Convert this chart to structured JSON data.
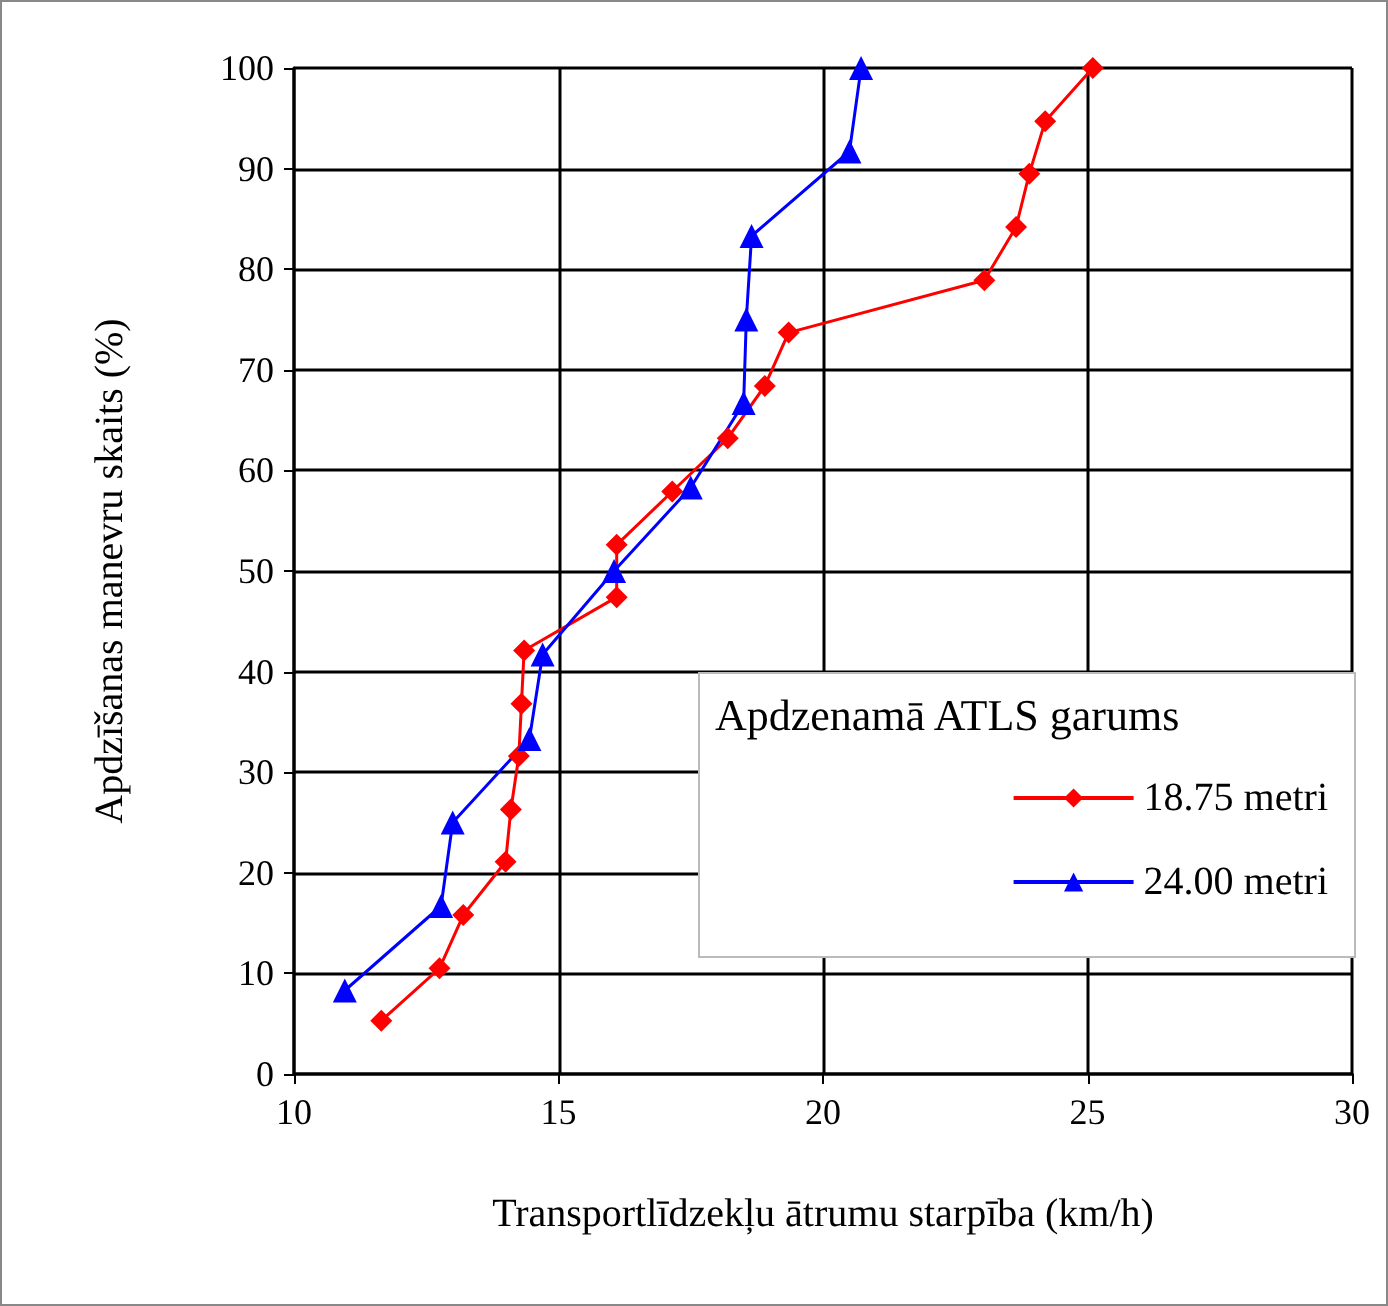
{
  "chart_data": {
    "type": "line",
    "xlabel": "Transportlīdzekļu ātrumu starpība (km/h)",
    "ylabel": "Apdzīšanas manevru skaits (%)",
    "legend_title": "Apdzenamā ATLS garums",
    "xlim": [
      10,
      30
    ],
    "xticks": [
      10,
      15,
      20,
      25,
      30
    ],
    "ylim": [
      0,
      100
    ],
    "yticks": [
      0,
      10,
      20,
      30,
      40,
      50,
      60,
      70,
      80,
      90,
      100
    ],
    "grid": true,
    "legend": "right",
    "series": [
      {
        "name": "18.75 metri",
        "color": "#ff0000",
        "marker": "diamond",
        "x": [
          11.65,
          12.75,
          13.2,
          14.0,
          14.1,
          14.25,
          14.3,
          14.35,
          16.1,
          16.1,
          17.15,
          18.2,
          18.9,
          19.35,
          23.05,
          23.65,
          23.9,
          24.2,
          25.1
        ],
        "values": [
          5.3,
          10.5,
          15.8,
          21.1,
          26.3,
          31.6,
          36.8,
          42.1,
          47.4,
          52.6,
          57.9,
          63.2,
          68.4,
          73.7,
          78.9,
          84.2,
          89.5,
          94.7,
          100
        ]
      },
      {
        "name": "24.00 metri",
        "color": "#0000ff",
        "marker": "triangle",
        "x": [
          10.96,
          12.78,
          13.0,
          14.45,
          14.7,
          16.05,
          17.5,
          18.5,
          18.55,
          18.65,
          20.5,
          20.72
        ],
        "values": [
          8.3,
          16.7,
          25,
          33.3,
          41.7,
          50,
          58.3,
          66.7,
          75,
          83.3,
          91.7,
          100
        ]
      }
    ]
  }
}
